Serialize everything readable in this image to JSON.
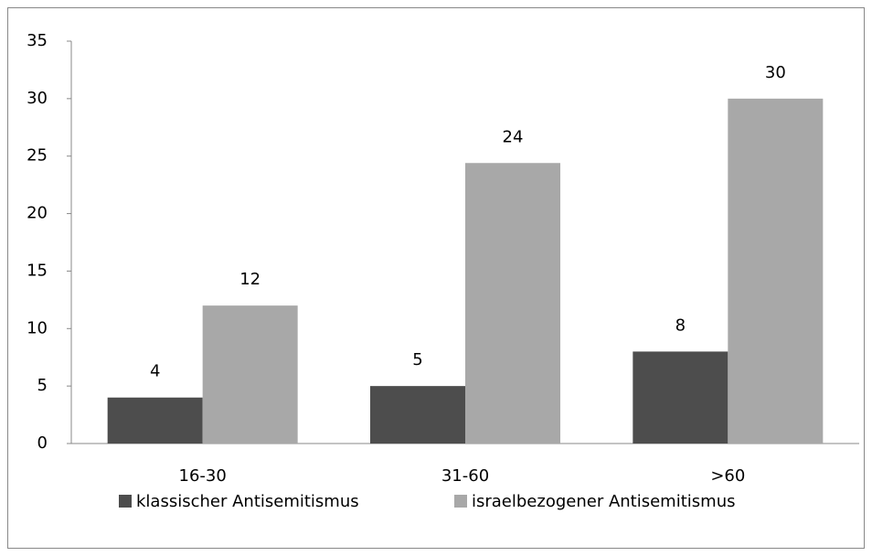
{
  "chart_data": {
    "type": "bar",
    "categories": [
      "16-30",
      "31-60",
      ">60"
    ],
    "series": [
      {
        "name": "klassischer Antisemitismus",
        "color": "#4d4d4d",
        "values": [
          4,
          5,
          8
        ]
      },
      {
        "name": "israelbezogener Antisemitismus",
        "color": "#a8a8a8",
        "values": [
          12,
          24.4,
          30
        ],
        "value_labels": [
          "12",
          "24",
          "30"
        ]
      }
    ],
    "ylim": [
      0,
      35
    ],
    "yticks": [
      0,
      5,
      10,
      15,
      20,
      25,
      30,
      35
    ],
    "grid": false,
    "legend": "bottom"
  }
}
